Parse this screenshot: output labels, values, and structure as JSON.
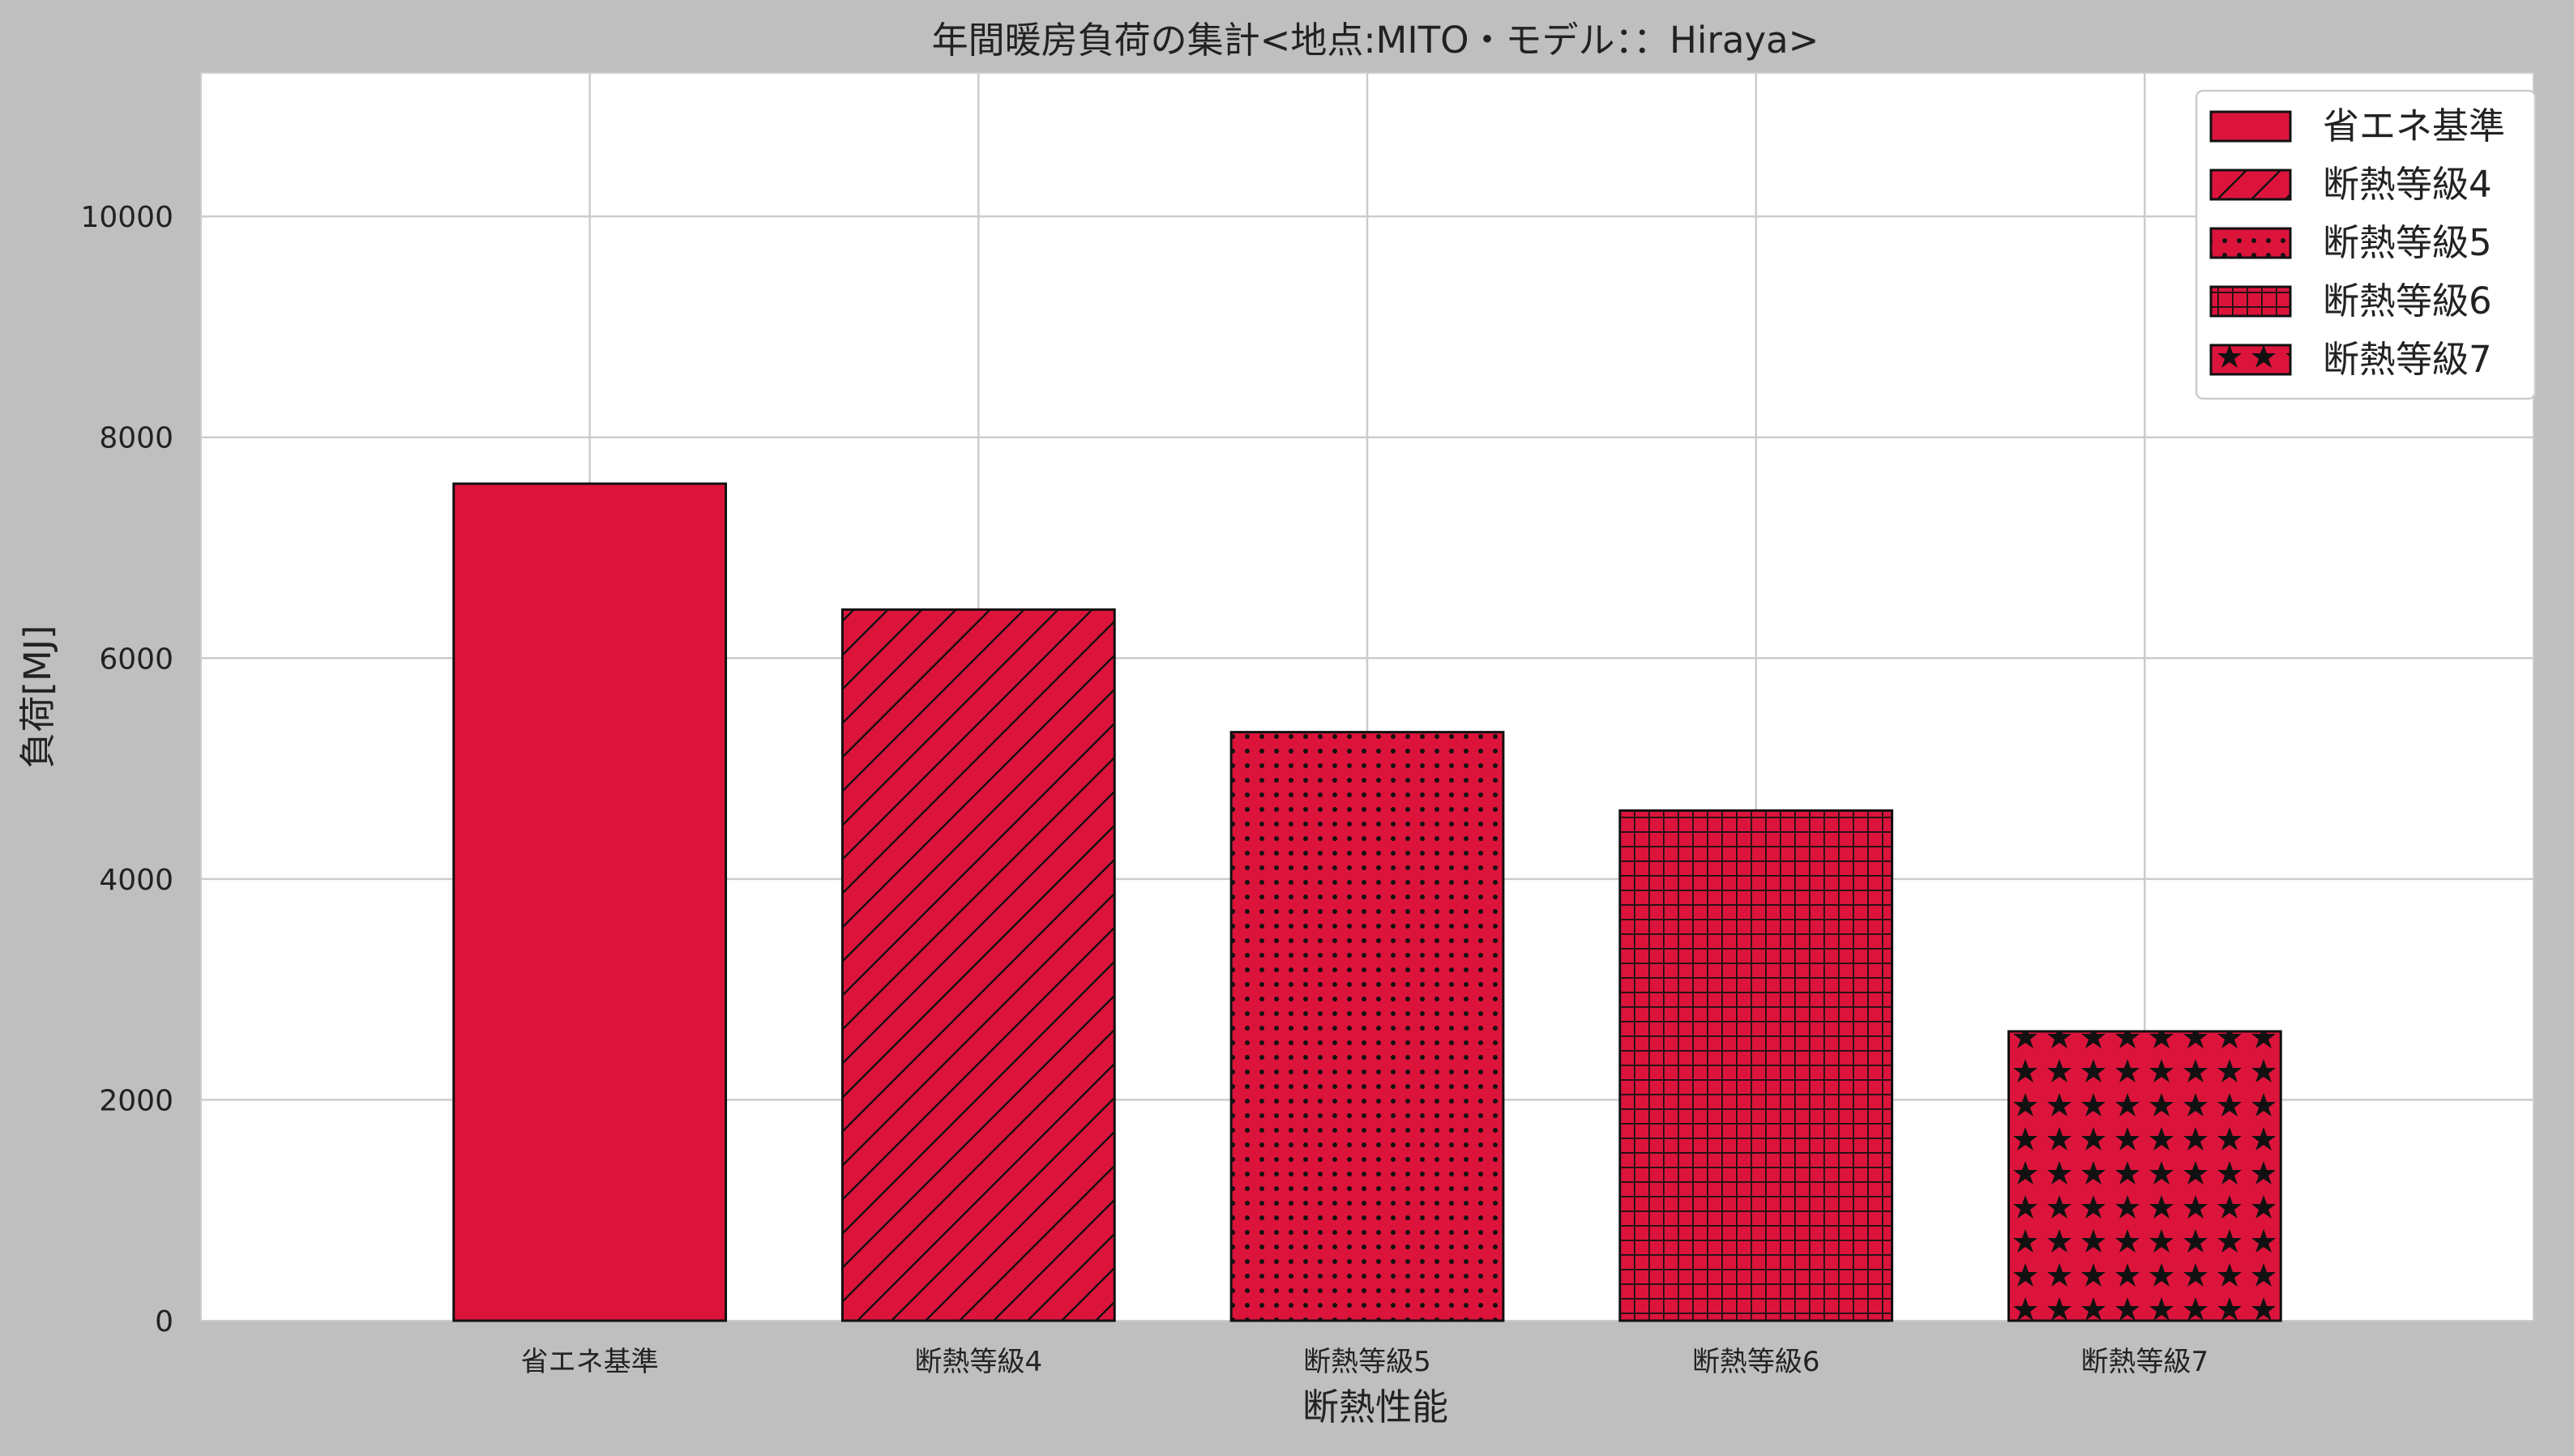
{
  "chart_data": {
    "type": "bar",
    "title": "年間暖房負荷の集計<地点:MITO・モデル：：Hiraya>",
    "xlabel": "断熱性能",
    "ylabel": "負荷[MJ]",
    "categories": [
      "省エネ基準",
      "断熱等級4",
      "断熱等級5",
      "断熱等級6",
      "断熱等級7"
    ],
    "values": [
      7580,
      6440,
      5330,
      4620,
      2620
    ],
    "patterns": [
      "solid",
      "diagonal",
      "dots",
      "grid",
      "stars"
    ],
    "ylim": [
      0,
      11300
    ],
    "yticks": [
      0,
      2000,
      4000,
      6000,
      8000,
      10000
    ],
    "grid": true,
    "legend": {
      "placement": "top-right",
      "entries": [
        "省エネ基準",
        "断熱等級4",
        "断熱等級5",
        "断熱等級6",
        "断熱等級7"
      ]
    },
    "colors": {
      "bar": "#dc143c",
      "edge": "#111111",
      "background": "#bfbfbf",
      "plot": "#ffffff",
      "grid": "#cccccc"
    }
  }
}
